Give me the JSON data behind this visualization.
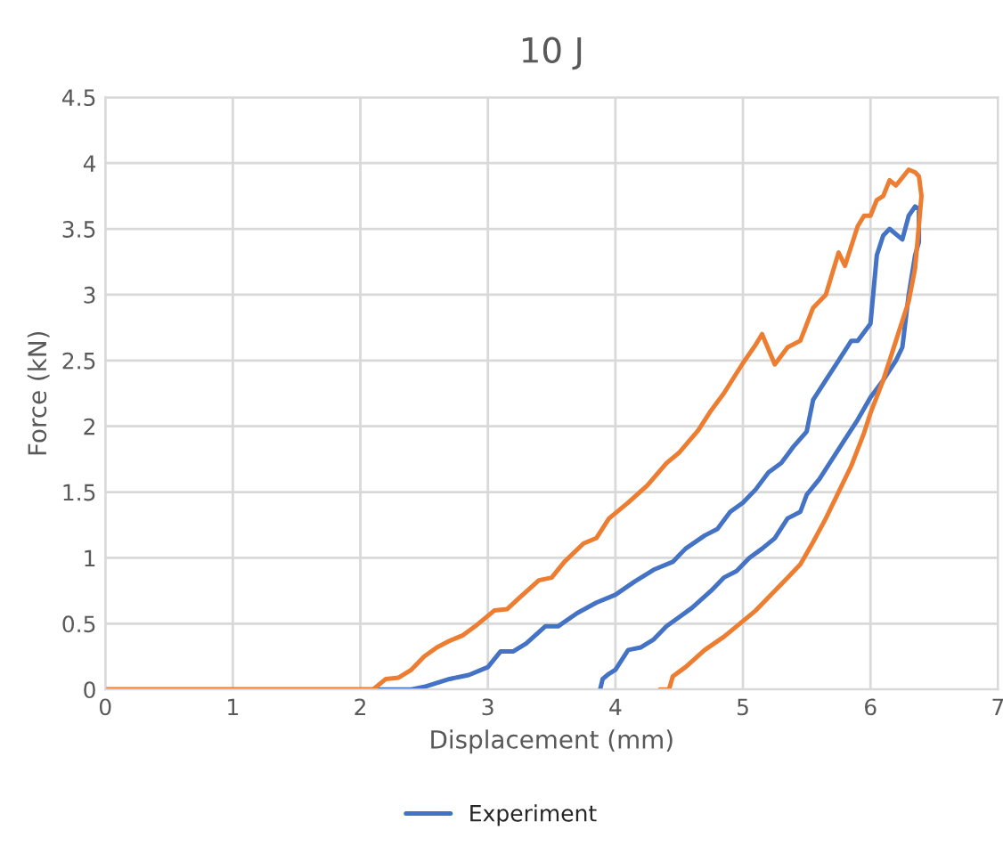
{
  "chart_data": {
    "type": "line",
    "title": "10 J",
    "xlabel": "Displacement (mm)",
    "ylabel": "Force (kN)",
    "xlim": [
      0,
      7
    ],
    "xticks": [
      0,
      1,
      2,
      3,
      4,
      5,
      6,
      7
    ],
    "ylim": [
      0,
      4.5
    ],
    "yticks": [
      0,
      0.5,
      1,
      1.5,
      2,
      2.5,
      3,
      3.5,
      4,
      4.5
    ],
    "grid": true,
    "legend": "bottom",
    "series": [
      {
        "name": "Experiment",
        "color": "#4472c4",
        "x": [
          0,
          1,
          2,
          2.4,
          2.5,
          2.6,
          2.7,
          2.85,
          3.0,
          3.1,
          3.2,
          3.3,
          3.45,
          3.55,
          3.7,
          3.85,
          4.0,
          4.15,
          4.3,
          4.45,
          4.55,
          4.7,
          4.8,
          4.9,
          5.0,
          5.1,
          5.2,
          5.3,
          5.4,
          5.5,
          5.55,
          5.65,
          5.75,
          5.85,
          5.9,
          6.0,
          6.05,
          6.1,
          6.15,
          6.25,
          6.3,
          6.35,
          6.38,
          6.38,
          6.35,
          6.3,
          6.25,
          6.2,
          6.1,
          6.0,
          5.9,
          5.8,
          5.7,
          5.6,
          5.5,
          5.45,
          5.35,
          5.25,
          5.15,
          5.05,
          4.95,
          4.85,
          4.75,
          4.6,
          4.5,
          4.4,
          4.3,
          4.2,
          4.1,
          4.0,
          3.95,
          3.9,
          3.88
        ],
        "values": [
          0,
          0,
          0,
          0,
          0.02,
          0.05,
          0.08,
          0.11,
          0.17,
          0.29,
          0.29,
          0.35,
          0.48,
          0.48,
          0.58,
          0.66,
          0.72,
          0.82,
          0.91,
          0.97,
          1.07,
          1.17,
          1.22,
          1.35,
          1.42,
          1.52,
          1.65,
          1.72,
          1.85,
          1.96,
          2.2,
          2.35,
          2.5,
          2.65,
          2.65,
          2.78,
          3.3,
          3.45,
          3.5,
          3.42,
          3.6,
          3.67,
          3.65,
          3.4,
          3.3,
          3.0,
          2.6,
          2.5,
          2.35,
          2.22,
          2.05,
          1.9,
          1.75,
          1.6,
          1.48,
          1.35,
          1.3,
          1.15,
          1.07,
          1.0,
          0.9,
          0.85,
          0.75,
          0.62,
          0.55,
          0.48,
          0.38,
          0.32,
          0.3,
          0.15,
          0.12,
          0.08,
          0
        ]
      },
      {
        "color": "#ed7d31",
        "x": [
          0,
          1,
          2,
          2.1,
          2.2,
          2.3,
          2.4,
          2.5,
          2.6,
          2.7,
          2.8,
          2.9,
          3.05,
          3.15,
          3.25,
          3.4,
          3.5,
          3.6,
          3.75,
          3.85,
          3.95,
          4.1,
          4.25,
          4.4,
          4.5,
          4.65,
          4.75,
          4.85,
          5.0,
          5.1,
          5.15,
          5.25,
          5.35,
          5.45,
          5.55,
          5.65,
          5.75,
          5.8,
          5.9,
          5.95,
          6.0,
          6.05,
          6.1,
          6.15,
          6.2,
          6.3,
          6.35,
          6.38,
          6.4,
          6.35,
          6.3,
          6.2,
          6.1,
          6.0,
          5.95,
          5.85,
          5.75,
          5.65,
          5.55,
          5.45,
          5.35,
          5.25,
          5.1,
          4.95,
          4.85,
          4.7,
          4.55,
          4.45,
          4.42,
          4.35
        ],
        "values": [
          0,
          0,
          0,
          0,
          0.08,
          0.09,
          0.15,
          0.25,
          0.32,
          0.37,
          0.41,
          0.48,
          0.6,
          0.61,
          0.7,
          0.83,
          0.85,
          0.97,
          1.11,
          1.15,
          1.3,
          1.42,
          1.55,
          1.72,
          1.8,
          1.97,
          2.12,
          2.25,
          2.48,
          2.62,
          2.7,
          2.47,
          2.6,
          2.65,
          2.9,
          3.0,
          3.32,
          3.22,
          3.52,
          3.6,
          3.6,
          3.72,
          3.75,
          3.87,
          3.83,
          3.95,
          3.93,
          3.9,
          3.75,
          3.2,
          2.95,
          2.65,
          2.35,
          2.1,
          1.95,
          1.7,
          1.5,
          1.3,
          1.12,
          0.95,
          0.85,
          0.75,
          0.6,
          0.48,
          0.4,
          0.3,
          0.17,
          0.1,
          0,
          0
        ]
      }
    ]
  }
}
